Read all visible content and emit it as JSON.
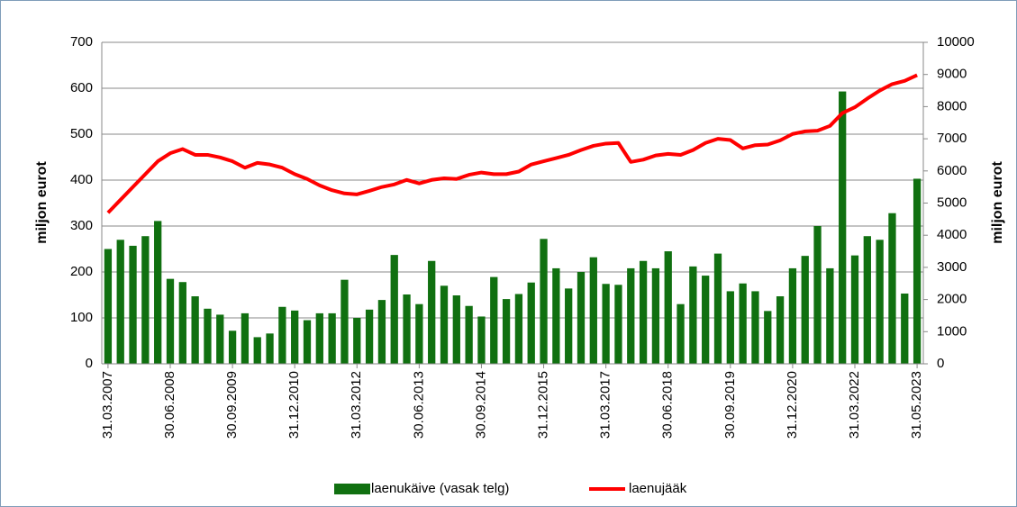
{
  "chart_data": {
    "type": "bar",
    "categories": [
      "31.03.2007",
      null,
      null,
      null,
      null,
      "30.06.2008",
      null,
      null,
      null,
      null,
      "30.09.2009",
      null,
      null,
      null,
      null,
      "31.12.2010",
      null,
      null,
      null,
      null,
      "31.03.2012",
      null,
      null,
      null,
      null,
      "30.06.2013",
      null,
      null,
      null,
      null,
      "30.09.2014",
      null,
      null,
      null,
      null,
      "31.12.2015",
      null,
      null,
      null,
      null,
      "31.03.2017",
      null,
      null,
      null,
      null,
      "30.06.2018",
      null,
      null,
      null,
      null,
      "30.09.2019",
      null,
      null,
      null,
      null,
      "31.12.2020",
      null,
      null,
      null,
      null,
      "31.03.2022",
      null,
      null,
      null,
      null,
      "31.05.2023"
    ],
    "series": [
      {
        "name": "laenukäive (vasak telg)",
        "color": "#107010",
        "values": [
          250,
          270,
          257,
          278,
          311,
          185,
          178,
          147,
          120,
          107,
          72,
          110,
          58,
          66,
          124,
          116,
          95,
          110,
          110,
          183,
          100,
          118,
          139,
          237,
          151,
          130,
          224,
          170,
          149,
          126,
          103,
          189,
          141,
          152,
          177,
          272,
          208,
          164,
          200,
          232,
          174,
          172,
          208,
          224,
          208,
          245,
          130,
          212,
          192,
          240,
          158,
          175,
          158,
          115,
          147,
          208,
          235,
          300,
          208,
          593,
          236,
          278,
          270,
          328,
          153,
          403
        ]
      },
      {
        "name": "laenujääk",
        "color": "#ff0000",
        "type": "line",
        "axis": "y2",
        "values": [
          4700,
          5100,
          5500,
          5900,
          6300,
          6550,
          6680,
          6500,
          6500,
          6420,
          6300,
          6100,
          6250,
          6200,
          6100,
          5900,
          5750,
          5550,
          5400,
          5300,
          5270,
          5380,
          5500,
          5580,
          5720,
          5610,
          5720,
          5770,
          5750,
          5880,
          5950,
          5900,
          5900,
          5980,
          6200,
          6300,
          6400,
          6500,
          6650,
          6780,
          6850,
          6870,
          6280,
          6350,
          6480,
          6530,
          6500,
          6650,
          6870,
          7000,
          6960,
          6700,
          6800,
          6820,
          6950,
          7150,
          7230,
          7250,
          7400,
          7800,
          7980,
          8250,
          8500,
          8700,
          8800,
          8980
        ]
      }
    ],
    "ylabel": "miljon eurot",
    "y2label": "miljon eurot",
    "ylim": [
      0,
      700
    ],
    "yticks": [
      0,
      100,
      200,
      300,
      400,
      500,
      600,
      700
    ],
    "y2lim": [
      0,
      10000
    ],
    "y2ticks": [
      0,
      1000,
      2000,
      3000,
      4000,
      5000,
      6000,
      7000,
      8000,
      9000,
      10000
    ],
    "grid": true,
    "legend": "bottom"
  }
}
